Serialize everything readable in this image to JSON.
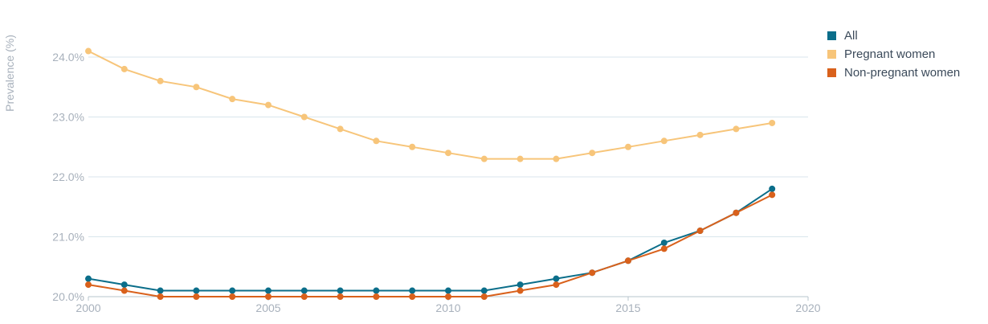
{
  "chart_data": {
    "type": "line",
    "title": "",
    "xlabel": "",
    "ylabel": "Prevalence (%)",
    "x": [
      2000,
      2001,
      2002,
      2003,
      2004,
      2005,
      2006,
      2007,
      2008,
      2009,
      2010,
      2011,
      2012,
      2013,
      2014,
      2015,
      2016,
      2017,
      2018,
      2019
    ],
    "xlim": [
      2000,
      2020
    ],
    "ylim": [
      20.0,
      24.0
    ],
    "x_ticks": [
      "2000",
      "2005",
      "2010",
      "2015",
      "2020"
    ],
    "y_ticks": [
      "20.0%",
      "21.0%",
      "22.0%",
      "23.0%",
      "24.0%"
    ],
    "grid": "horizontal",
    "legend_position": "top-right",
    "series": [
      {
        "name": "All",
        "color": "#0b6e8a",
        "values": [
          20.3,
          20.2,
          20.1,
          20.1,
          20.1,
          20.1,
          20.1,
          20.1,
          20.1,
          20.1,
          20.1,
          20.1,
          20.2,
          20.3,
          20.4,
          20.6,
          20.9,
          21.1,
          21.4,
          21.8
        ]
      },
      {
        "name": "Pregnant women",
        "color": "#f7c57a",
        "values": [
          24.1,
          23.8,
          23.6,
          23.5,
          23.3,
          23.2,
          23.0,
          22.8,
          22.6,
          22.5,
          22.4,
          22.3,
          22.3,
          22.3,
          22.4,
          22.5,
          22.6,
          22.7,
          22.8,
          22.9
        ]
      },
      {
        "name": "Non-pregnant women",
        "color": "#d9611c",
        "values": [
          20.2,
          20.1,
          20.0,
          20.0,
          20.0,
          20.0,
          20.0,
          20.0,
          20.0,
          20.0,
          20.0,
          20.0,
          20.1,
          20.2,
          20.4,
          20.6,
          20.8,
          21.1,
          21.4,
          21.7
        ]
      }
    ]
  }
}
